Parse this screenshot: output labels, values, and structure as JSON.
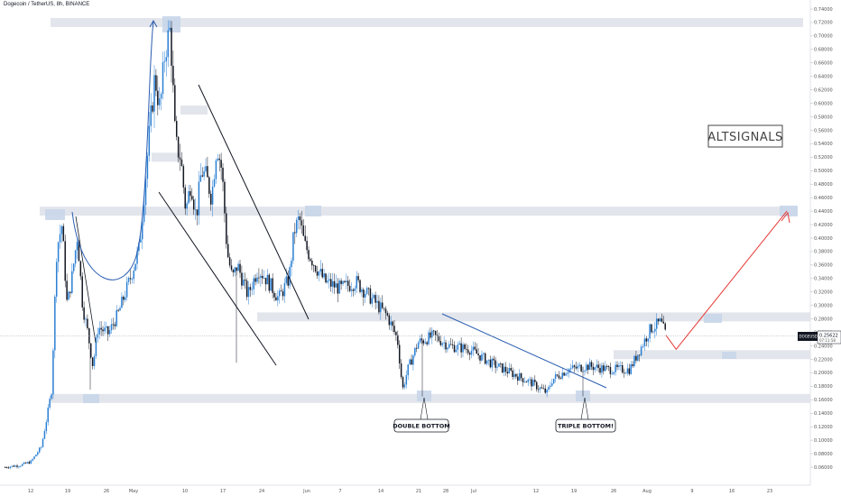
{
  "header": {
    "title": "Dogecoin / TetherUS, 8h, BINANCE"
  },
  "watermark": "ALTSIGNALS",
  "price_tag": {
    "symbol": "DOGEUSDT",
    "price": "0.25622",
    "countdown": "07:11:58"
  },
  "annotations": {
    "double_bottom": "DOUBLE BOTTOM",
    "triple_bottom": "TRIPLE BOTTOM!"
  },
  "colors": {
    "up": "#2a7fd4",
    "down": "#131722",
    "zone": "#dde1e8",
    "zone_edge": "#c9d6ea",
    "projection": "#e53935",
    "trendline": "#131722",
    "blue_line": "#2a5db0"
  },
  "chart_data": {
    "type": "candlestick",
    "title": "Dogecoin / TetherUS, 8h, BINANCE",
    "xlabel": "",
    "ylabel": "",
    "ylim": [
      0.045,
      0.745
    ],
    "y_ticks": [
      "0.74000",
      "0.72000",
      "0.70000",
      "0.68000",
      "0.66000",
      "0.64000",
      "0.62000",
      "0.60000",
      "0.58000",
      "0.56000",
      "0.54000",
      "0.52000",
      "0.50000",
      "0.48000",
      "0.46000",
      "0.44000",
      "0.42000",
      "0.40000",
      "0.38000",
      "0.36000",
      "0.34000",
      "0.32000",
      "0.30000",
      "0.28000",
      "0.26000",
      "0.24000",
      "0.22000",
      "0.20000",
      "0.18000",
      "0.16000",
      "0.14000",
      "0.12000",
      "0.10000",
      "0.08000",
      "0.06000"
    ],
    "x_ticks": [
      "12",
      "19",
      "26",
      "May",
      "10",
      "17",
      "24",
      "Jun",
      "7",
      "14",
      "21",
      "28",
      "Jul",
      "12",
      "19",
      "26",
      "Aug",
      "9",
      "16",
      "23"
    ],
    "close_path": [
      [
        "Apr 6",
        0.06
      ],
      [
        "Apr 9",
        0.063
      ],
      [
        "Apr 11",
        0.068
      ],
      [
        "Apr 13",
        0.09
      ],
      [
        "Apr 14",
        0.13
      ],
      [
        "Apr 15",
        0.175
      ],
      [
        "Apr 16",
        0.385
      ],
      [
        "Apr 17",
        0.42
      ],
      [
        "Apr 18",
        0.3
      ],
      [
        "Apr 19",
        0.345
      ],
      [
        "Apr 20",
        0.405
      ],
      [
        "Apr 21",
        0.3
      ],
      [
        "Apr 22",
        0.26
      ],
      [
        "Apr 23",
        0.21
      ],
      [
        "Apr 24",
        0.268
      ],
      [
        "Apr 26",
        0.258
      ],
      [
        "Apr 28",
        0.29
      ],
      [
        "Apr 30",
        0.335
      ],
      [
        "May 2",
        0.385
      ],
      [
        "May 4",
        0.56
      ],
      [
        "May 5",
        0.64
      ],
      [
        "May 6",
        0.59
      ],
      [
        "May 7",
        0.68
      ],
      [
        "May 8",
        0.71
      ],
      [
        "May 9",
        0.54
      ],
      [
        "May 10",
        0.52
      ],
      [
        "May 11",
        0.44
      ],
      [
        "May 12",
        0.485
      ],
      [
        "May 13",
        0.43
      ],
      [
        "May 14",
        0.5
      ],
      [
        "May 15",
        0.49
      ],
      [
        "May 16",
        0.46
      ],
      [
        "May 17",
        0.54
      ],
      [
        "May 18",
        0.5
      ],
      [
        "May 19",
        0.38
      ],
      [
        "May 20",
        0.34
      ],
      [
        "May 21",
        0.36
      ],
      [
        "May 23",
        0.315
      ],
      [
        "May 25",
        0.355
      ],
      [
        "May 27",
        0.335
      ],
      [
        "May 29",
        0.31
      ],
      [
        "May 31",
        0.34
      ],
      [
        "Jun 1",
        0.41
      ],
      [
        "Jun 2",
        0.43
      ],
      [
        "Jun 3",
        0.39
      ],
      [
        "Jun 5",
        0.36
      ],
      [
        "Jun 7",
        0.335
      ],
      [
        "Jun 10",
        0.325
      ],
      [
        "Jun 13",
        0.335
      ],
      [
        "Jun 16",
        0.31
      ],
      [
        "Jun 19",
        0.285
      ],
      [
        "Jun 21",
        0.25
      ],
      [
        "Jun 22",
        0.175
      ],
      [
        "Jun 23",
        0.205
      ],
      [
        "Jun 25",
        0.245
      ],
      [
        "Jun 28",
        0.255
      ],
      [
        "Jul 1",
        0.24
      ],
      [
        "Jul 5",
        0.235
      ],
      [
        "Jul 9",
        0.215
      ],
      [
        "Jul 13",
        0.2
      ],
      [
        "Jul 17",
        0.185
      ],
      [
        "Jul 20",
        0.17
      ],
      [
        "Jul 21",
        0.19
      ],
      [
        "Jul 24",
        0.205
      ],
      [
        "Jul 28",
        0.21
      ],
      [
        "Aug 1",
        0.205
      ],
      [
        "Aug 5",
        0.205
      ],
      [
        "Aug 7",
        0.235
      ],
      [
        "Aug 9",
        0.265
      ],
      [
        "Aug 11",
        0.275
      ],
      [
        "Aug 12",
        0.256
      ]
    ],
    "price_zones": [
      0.72,
      0.59,
      0.52,
      0.44,
      0.283,
      0.227,
      0.162
    ],
    "projection": [
      [
        "Aug 12",
        0.256
      ],
      [
        "Aug 14",
        0.235
      ],
      [
        "Aug 21",
        0.44
      ]
    ],
    "grid": false,
    "last_price": 0.25622
  }
}
